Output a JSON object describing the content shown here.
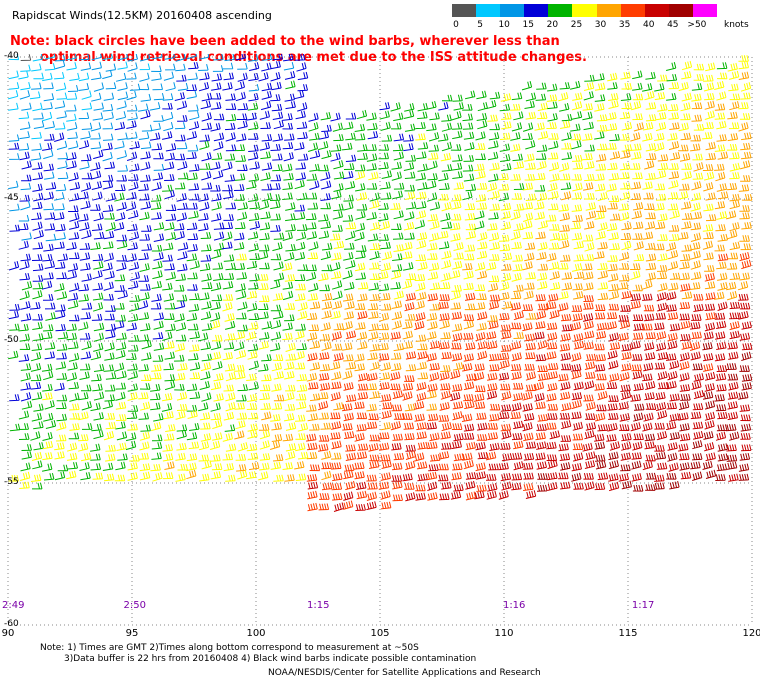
{
  "header": {
    "title": "Rapidscat Winds(12.5KM) 20160408 ascending",
    "note_line1": "Note: black circles have been added to the wind barbs, wherever less than",
    "note_line2": "optimal wind retrieval conditions are met due to the ISS attitude changes."
  },
  "legend": {
    "units": "knots",
    "entries": [
      {
        "label": "0",
        "color": "#555555"
      },
      {
        "label": "5",
        "color": "#00c8ff"
      },
      {
        "label": "10",
        "color": "#0096e6"
      },
      {
        "label": "15",
        "color": "#0000d8"
      },
      {
        "label": "20",
        "color": "#00b400"
      },
      {
        "label": "25",
        "color": "#ffff00"
      },
      {
        "label": "30",
        "color": "#ffa500"
      },
      {
        "label": "35",
        "color": "#ff3c00"
      },
      {
        "label": "40",
        "color": "#c80000"
      },
      {
        "label": "45",
        "color": "#a00000"
      },
      {
        "label": ">50",
        "color": "#ff00ff"
      }
    ]
  },
  "map": {
    "x_axis": {
      "ticks": [
        "90",
        "95",
        "100",
        "105",
        "110",
        "115",
        "120"
      ],
      "lon_min": 90,
      "lon_max": 120
    },
    "y_axis": {
      "ticks": [
        "-40",
        "-45",
        "-50",
        "-55",
        "-60"
      ],
      "lat_top": -40,
      "lat_bottom": -60
    },
    "pass_times": [
      {
        "label": "2:49",
        "lon": 90.0
      },
      {
        "label": "2:50",
        "lon": 94.9
      },
      {
        "label": "1:15",
        "lon": 102.3
      },
      {
        "label": "1:16",
        "lon": 110.2
      },
      {
        "label": "1:17",
        "lon": 115.4
      }
    ]
  },
  "footer": {
    "notes_line1": "Note: 1) Times are GMT 2)Times along bottom correspond to measurement at ~50S",
    "notes_line2": "3)Data buffer is 22 hrs from 20160408 4) Black wind barbs indicate possible contamination",
    "credit": "NOAA/NESDIS/Center for Satellite Applications and Research"
  }
}
